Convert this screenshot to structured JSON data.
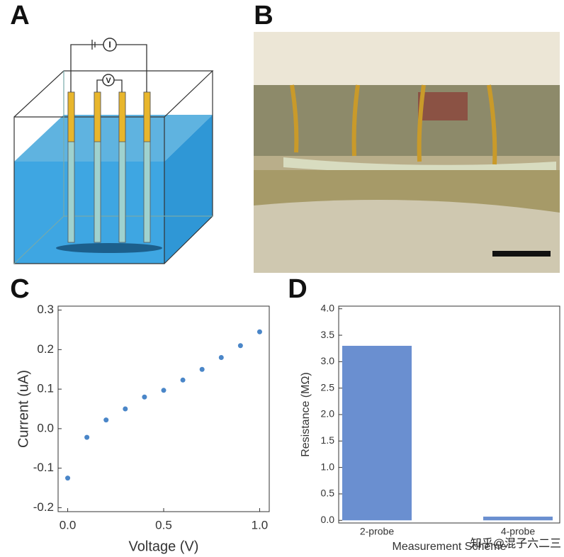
{
  "panel_labels": [
    "A",
    "B",
    "C",
    "D"
  ],
  "diagram": {
    "ammeter": "I",
    "voltmeter": "V"
  },
  "watermark": "知乎@混子六二三",
  "chart_data": [
    {
      "type": "scatter",
      "xlabel": "Voltage (V)",
      "ylabel": "Current (uA)",
      "color": "#4a86c8",
      "x": [
        0,
        0.1,
        0.2,
        0.3,
        0.4,
        0.5,
        0.6,
        0.7,
        0.8,
        0.9,
        1.0
      ],
      "values": [
        -0.125,
        -0.022,
        0.022,
        0.05,
        0.08,
        0.097,
        0.123,
        0.15,
        0.18,
        0.21,
        0.245
      ],
      "xlim": [
        -0.05,
        1.05
      ],
      "xticks": [
        {
          "value": 0,
          "label": "0.0"
        },
        0.5,
        {
          "value": 1,
          "label": "1.0"
        }
      ],
      "ylim": [
        -0.21,
        0.31
      ],
      "yticks": [
        0.3,
        0.2,
        0.1,
        {
          "value": 0,
          "label": "0.0"
        },
        -0.1,
        -0.2
      ],
      "grid": false
    },
    {
      "type": "bar",
      "xlabel": "Measurement Scheme",
      "ylabel": "Resistance (MΩ)",
      "color": "#6a8fd0",
      "categories": [
        "2-probe",
        "4-probe"
      ],
      "values": [
        3.3,
        0.07
      ],
      "ylim": [
        -0.05,
        4.05
      ],
      "yticks": [
        {
          "value": 4,
          "label": "4.0"
        },
        3.5,
        {
          "value": 3,
          "label": "3.0"
        },
        2.5,
        {
          "value": 2,
          "label": "2.0"
        },
        1.5,
        {
          "value": 1,
          "label": "1.0"
        },
        0.5,
        {
          "value": 0,
          "label": "0.0"
        }
      ],
      "grid": false
    }
  ]
}
